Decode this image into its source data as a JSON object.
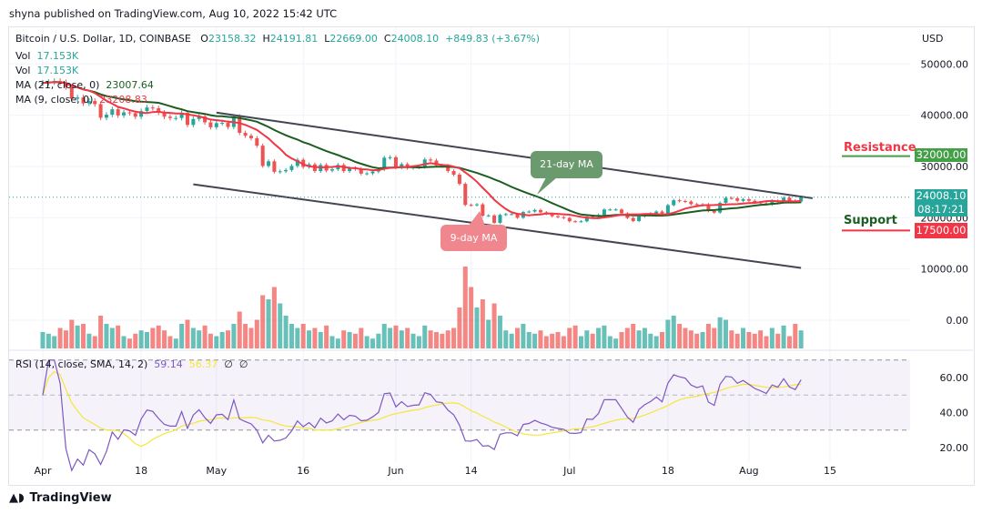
{
  "header": {
    "published": "shyna published on TradingView.com, Aug 10, 2022 15:42 UTC"
  },
  "legend": {
    "symbol": "Bitcoin / U.S. Dollar, 1D, COINBASE",
    "o_label": "O",
    "o": "23158.32",
    "h_label": "H",
    "h": "24191.81",
    "l_label": "L",
    "l": "22669.00",
    "c_label": "C",
    "c": "24008.10",
    "change": "+849.83 (+3.67%)",
    "vol1_label": "Vol",
    "vol1": "17.153K",
    "vol2_label": "Vol",
    "vol2": "17.153K",
    "ma21_label": "MA (21, close, 0)",
    "ma21": "23007.64",
    "ma9_label": "MA (9, close, 0)",
    "ma9": "23208.83",
    "rsi_label": "RSI (14, close, SMA, 14, 2)",
    "rsi": "59.14",
    "rsi_sma": "56.37",
    "rsi_extra1": "∅",
    "rsi_extra2": "∅"
  },
  "axis": {
    "currency": "USD"
  },
  "annotations": {
    "resistance": "Resistance",
    "support": "Support",
    "ma21_bubble": "21-day MA",
    "ma9_bubble": "9-day MA"
  },
  "price_tags": {
    "resistance": "32000.00",
    "last": "24008.10",
    "countdown": "08:17:21",
    "support": "17500.00"
  },
  "colors": {
    "up": "#26a69a",
    "down": "#ef5350",
    "ma21": "#1b5e20",
    "ma9": "#f23645",
    "rsi": "#7e57c2",
    "rsi_sma": "#f5e63c",
    "resistance": "#43a047",
    "support": "#f23645"
  },
  "footer": {
    "brand": "TradingView"
  },
  "chart_data": [
    {
      "type": "candlestick",
      "title": "Bitcoin / U.S. Dollar, 1D, COINBASE",
      "start_date": "2022-04-01",
      "end_date": "2022-08-10",
      "x_ticks": [
        {
          "label": "Apr",
          "date": "2022-04-01"
        },
        {
          "label": "18",
          "date": "2022-04-18"
        },
        {
          "label": "May",
          "date": "2022-05-01"
        },
        {
          "label": "16",
          "date": "2022-05-16"
        },
        {
          "label": "Jun",
          "date": "2022-06-01"
        },
        {
          "label": "14",
          "date": "2022-06-14"
        },
        {
          "label": "Jul",
          "date": "2022-07-01"
        },
        {
          "label": "18",
          "date": "2022-07-18"
        },
        {
          "label": "Aug",
          "date": "2022-08-01"
        },
        {
          "label": "15",
          "date": "2022-08-15"
        }
      ],
      "y_ticks": [
        "50000.00",
        "40000.00",
        "30000.00",
        "20000.00",
        "10000.00",
        "0.00"
      ],
      "y_tick_values": [
        50000,
        40000,
        30000,
        20000,
        10000,
        0
      ],
      "closes": [
        46300,
        46450,
        46620,
        46400,
        45500,
        43200,
        43450,
        42300,
        42750,
        42150,
        39500,
        40100,
        41150,
        39950,
        40550,
        40400,
        39700,
        40800,
        41500,
        41350,
        40500,
        39700,
        39450,
        39450,
        40450,
        38100,
        39250,
        39750,
        38600,
        37650,
        38450,
        38500,
        37700,
        39700,
        36550,
        36000,
        35500,
        34050,
        30100,
        31000,
        28950,
        29050,
        29300,
        30100,
        31300,
        29900,
        30400,
        29100,
        30300,
        29200,
        29450,
        30300,
        29100,
        29650,
        29500,
        28600,
        28650,
        29000,
        29450,
        31700,
        31800,
        29800,
        30450,
        29700,
        29850,
        29900,
        31350,
        31150,
        30200,
        30100,
        29100,
        28400,
        26600,
        22500,
        22450,
        22600,
        20400,
        20450,
        19000,
        20550,
        20700,
        20700,
        20000,
        21100,
        21200,
        21500,
        21050,
        20750,
        20300,
        20100,
        19950,
        19300,
        19250,
        19300,
        20200,
        20150,
        20550,
        21600,
        21600,
        21600,
        20850,
        19950,
        19350,
        20250,
        20600,
        20850,
        21200,
        20800,
        22450,
        23400,
        23250,
        23150,
        22650,
        22450,
        22600,
        21300,
        21000,
        22900,
        23850,
        23800,
        23300,
        23600,
        23300,
        22980,
        22800,
        22600,
        23300,
        23150,
        23900,
        23330,
        23150,
        24008
      ],
      "volume_relative": [
        20,
        18,
        15,
        25,
        22,
        35,
        28,
        30,
        18,
        15,
        40,
        30,
        25,
        28,
        15,
        12,
        18,
        22,
        20,
        25,
        28,
        22,
        15,
        12,
        30,
        35,
        25,
        22,
        28,
        18,
        15,
        20,
        22,
        30,
        45,
        30,
        25,
        35,
        65,
        60,
        75,
        55,
        40,
        30,
        25,
        30,
        22,
        25,
        20,
        28,
        15,
        12,
        22,
        20,
        18,
        25,
        15,
        12,
        18,
        30,
        25,
        28,
        22,
        25,
        18,
        15,
        28,
        22,
        20,
        18,
        22,
        25,
        50,
        100,
        75,
        50,
        60,
        35,
        55,
        40,
        22,
        18,
        25,
        30,
        20,
        18,
        22,
        15,
        18,
        20,
        15,
        25,
        28,
        15,
        22,
        18,
        25,
        28,
        15,
        12,
        20,
        25,
        30,
        22,
        25,
        18,
        15,
        20,
        35,
        40,
        30,
        25,
        22,
        18,
        20,
        30,
        25,
        38,
        35,
        22,
        18,
        25,
        20,
        18,
        22,
        15,
        25,
        18,
        28,
        15,
        30,
        22
      ],
      "series": [
        {
          "name": "MA (21, close, 0)",
          "computed": "moving average 21"
        },
        {
          "name": "MA (9, close, 0)",
          "computed": "moving average 9"
        }
      ],
      "trendlines": [
        {
          "from": [
            "2022-05-01",
            40500
          ],
          "to": [
            "2022-08-12",
            23800
          ]
        },
        {
          "from": [
            "2022-04-27",
            26500
          ],
          "to": [
            "2022-08-10",
            10200
          ]
        }
      ],
      "levels": {
        "resistance": 32000,
        "support": 17500,
        "last": 24008.1
      }
    },
    {
      "type": "line",
      "title": "RSI (14, close, SMA, 14, 2)",
      "y_ticks": [
        "60.00",
        "40.00",
        "20.00"
      ],
      "y_tick_values": [
        60,
        40,
        20
      ],
      "band": [
        30,
        70
      ],
      "series": [
        {
          "name": "RSI",
          "last": 59.14
        },
        {
          "name": "SMA",
          "last": 56.37
        }
      ]
    }
  ]
}
